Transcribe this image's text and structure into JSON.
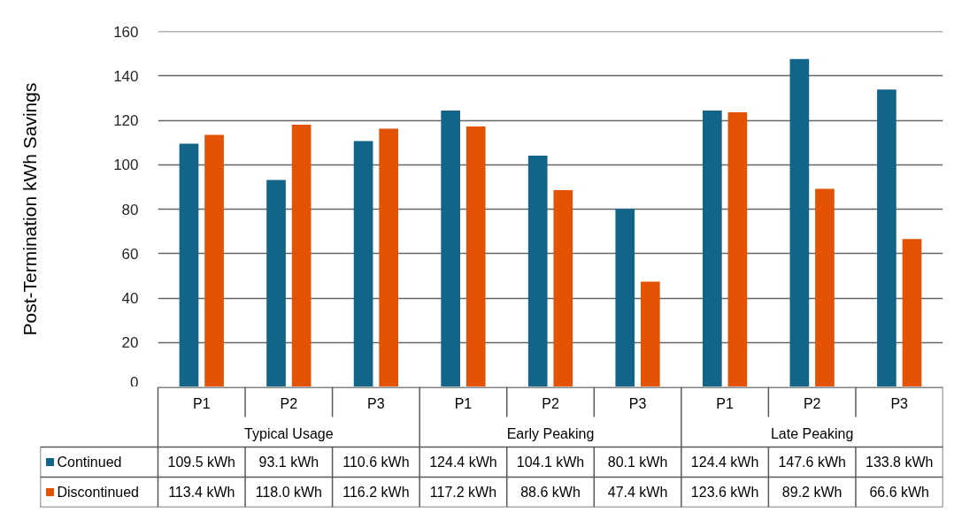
{
  "chart_data": {
    "type": "bar",
    "ylabel": "Post-Termination kWh Savings",
    "categories": [
      "P1",
      "P2",
      "P3",
      "P1",
      "P2",
      "P3",
      "P1",
      "P2",
      "P3"
    ],
    "annotations": [
      "Typical Usage",
      "Early Peaking",
      "Late Peaking"
    ],
    "series": [
      {
        "name": "Continued",
        "color": "#126589",
        "values": [
          109.5,
          93.1,
          110.6,
          124.4,
          104.1,
          80.1,
          124.4,
          147.6,
          133.8
        ],
        "value_labels": [
          "109.5 kWh",
          "93.1 kWh",
          "110.6 kWh",
          "124.4 kWh",
          "104.1 kWh",
          "80.1 kWh",
          "124.4 kWh",
          "147.6 kWh",
          "133.8 kWh"
        ]
      },
      {
        "name": "Discontinued",
        "color": "#e35205",
        "values": [
          113.4,
          118.0,
          116.2,
          117.2,
          88.6,
          47.4,
          123.6,
          89.2,
          66.6
        ],
        "value_labels": [
          "113.4 kWh",
          "118.0 kWh",
          "116.2 kWh",
          "117.2 kWh",
          "88.6 kWh",
          "47.4 kWh",
          "123.6 kWh",
          "89.2 kWh",
          "66.6 kWh"
        ]
      }
    ],
    "ylim": [
      0,
      160
    ],
    "yticks": [
      0,
      20,
      40,
      60,
      80,
      100,
      120,
      140,
      160
    ],
    "grid": "y",
    "legend": "bottom"
  }
}
